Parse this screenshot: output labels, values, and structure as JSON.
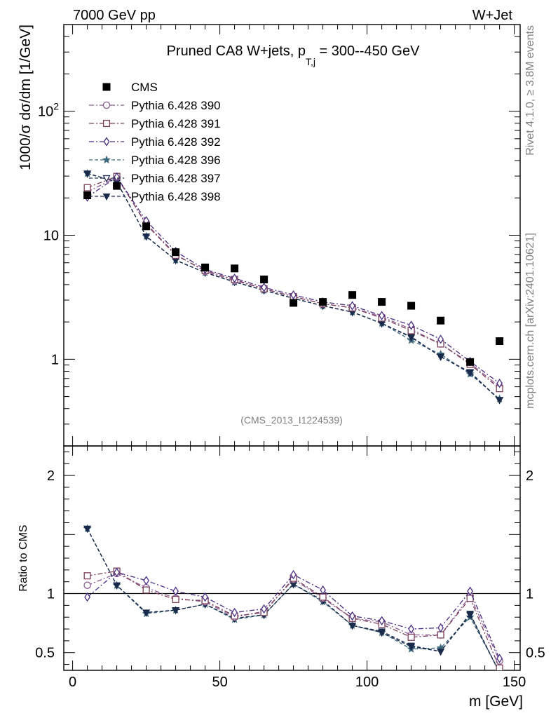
{
  "header": {
    "left": "7000 GeV pp",
    "right": "W+Jet"
  },
  "side_labels": {
    "rivet": "Rivet 4.1.0, ≥ 3.8M events",
    "mcplots": "mcplots.cern.ch [arXiv:2401.10621]"
  },
  "analysis_label": "(CMS_2013_I1224539)",
  "chart_data": [
    {
      "type": "scatter",
      "title_main": "Pruned CA8 W+jets, p",
      "title_sub": "T,j",
      "title_tail": " = 300--450 GeV",
      "ylabel": "1000/σ  dσ/dm [1/GeV]",
      "yscale": "log",
      "ylim": [
        0.2,
        500
      ],
      "xlim": [
        -3,
        152
      ],
      "y_tick_labels": [
        {
          "value": 1,
          "label": "1"
        },
        {
          "value": 10,
          "label": "10"
        },
        {
          "value": 100,
          "label": "10",
          "exponent": "2"
        }
      ],
      "x": [
        5,
        15,
        25,
        35,
        45,
        55,
        65,
        75,
        85,
        95,
        105,
        115,
        125,
        135,
        145
      ],
      "series": [
        {
          "name": "CMS",
          "marker": "square-filled",
          "line": "none",
          "color": "#000000",
          "values": [
            21,
            25,
            11.8,
            7.3,
            5.5,
            5.4,
            4.4,
            2.85,
            2.9,
            3.3,
            2.9,
            2.7,
            2.05,
            0.95,
            1.4
          ]
        },
        {
          "name": "Pythia 6.428 390",
          "marker": "circle-open",
          "line": "dashdot",
          "color": "#8a5c94",
          "values": [
            22.4,
            29.3,
            12.4,
            7.0,
            5.1,
            4.3,
            3.7,
            3.2,
            2.8,
            2.6,
            2.2,
            1.75,
            1.33,
            0.93,
            0.6
          ]
        },
        {
          "name": "Pythia 6.428 391",
          "marker": "square-open",
          "line": "dashdot",
          "color": "#7b3f5a",
          "values": [
            24.2,
            29.8,
            12.2,
            6.9,
            5.2,
            4.4,
            3.7,
            3.2,
            2.8,
            2.6,
            2.15,
            1.7,
            1.33,
            0.91,
            0.58
          ]
        },
        {
          "name": "Pythia 6.428 392",
          "marker": "diamond-open",
          "line": "dashdot",
          "color": "#4b2e83",
          "values": [
            20.3,
            29.5,
            13.1,
            7.4,
            5.3,
            4.5,
            3.8,
            3.3,
            2.9,
            2.7,
            2.25,
            1.88,
            1.45,
            0.96,
            0.64
          ]
        },
        {
          "name": "Pythia 6.428 396",
          "marker": "star",
          "line": "dashed",
          "color": "#3d6b7d",
          "values": [
            31.5,
            27.0,
            9.8,
            6.3,
            5.0,
            4.2,
            3.6,
            3.1,
            2.7,
            2.4,
            1.95,
            1.42,
            1.1,
            0.76,
            0.48
          ]
        },
        {
          "name": "Pythia 6.428 397",
          "marker": "triangle-down",
          "line": "dashed",
          "color": "#1f2e55",
          "values": [
            31.5,
            27.0,
            9.8,
            6.3,
            5.0,
            4.2,
            3.6,
            3.1,
            2.7,
            2.4,
            1.95,
            1.5,
            1.05,
            0.78,
            0.47
          ]
        },
        {
          "name": "Pythia 6.428 398",
          "marker": "triangle-down-filled",
          "line": "dashed",
          "color": "#1a2a4a",
          "values": [
            31.5,
            27.0,
            9.8,
            6.3,
            5.0,
            4.2,
            3.6,
            3.1,
            2.7,
            2.4,
            1.95,
            1.52,
            1.05,
            0.79,
            0.47
          ]
        }
      ]
    },
    {
      "type": "line",
      "ylabel": "Ratio to CMS",
      "xlabel": "m [GeV]",
      "ylim": [
        0.35,
        2.25
      ],
      "xlim": [
        -3,
        152
      ],
      "reference": 1,
      "y_tick_labels": [
        {
          "value": 0.5,
          "label": "0.5"
        },
        {
          "value": 1,
          "label": "1"
        },
        {
          "value": 2,
          "label": "2"
        }
      ],
      "x_tick_labels": [
        {
          "value": 0,
          "label": "0"
        },
        {
          "value": 50,
          "label": "50"
        },
        {
          "value": 100,
          "label": "100"
        },
        {
          "value": 150,
          "label": "150"
        }
      ],
      "x": [
        5,
        15,
        25,
        35,
        45,
        55,
        65,
        75,
        85,
        95,
        105,
        115,
        125,
        135,
        145
      ],
      "series": [
        {
          "name": "Pythia 6.428 390",
          "values": [
            1.07,
            1.17,
            1.05,
            0.96,
            0.93,
            0.8,
            0.85,
            1.12,
            0.96,
            0.79,
            0.76,
            0.65,
            0.65,
            0.98,
            0.43
          ]
        },
        {
          "name": "Pythia 6.428 391",
          "values": [
            1.15,
            1.19,
            1.03,
            0.95,
            0.94,
            0.81,
            0.84,
            1.13,
            0.97,
            0.79,
            0.74,
            0.63,
            0.65,
            0.96,
            0.37
          ]
        },
        {
          "name": "Pythia 6.428 392",
          "values": [
            0.97,
            1.18,
            1.11,
            1.02,
            0.97,
            0.84,
            0.87,
            1.16,
            1.03,
            0.81,
            0.77,
            0.7,
            0.71,
            1.02,
            0.45
          ]
        },
        {
          "name": "Pythia 6.428 396",
          "values": [
            1.55,
            1.07,
            0.83,
            0.86,
            0.91,
            0.78,
            0.82,
            1.08,
            0.93,
            0.73,
            0.67,
            0.53,
            0.54,
            0.8,
            0.34
          ]
        },
        {
          "name": "Pythia 6.428 397",
          "values": [
            1.55,
            1.07,
            0.84,
            0.86,
            0.91,
            0.79,
            0.82,
            1.08,
            0.94,
            0.73,
            0.67,
            0.55,
            0.51,
            0.82,
            0.33
          ]
        },
        {
          "name": "Pythia 6.428 398",
          "values": [
            1.55,
            1.07,
            0.84,
            0.86,
            0.91,
            0.79,
            0.82,
            1.08,
            0.94,
            0.73,
            0.68,
            0.56,
            0.51,
            0.83,
            0.33
          ]
        }
      ]
    }
  ]
}
